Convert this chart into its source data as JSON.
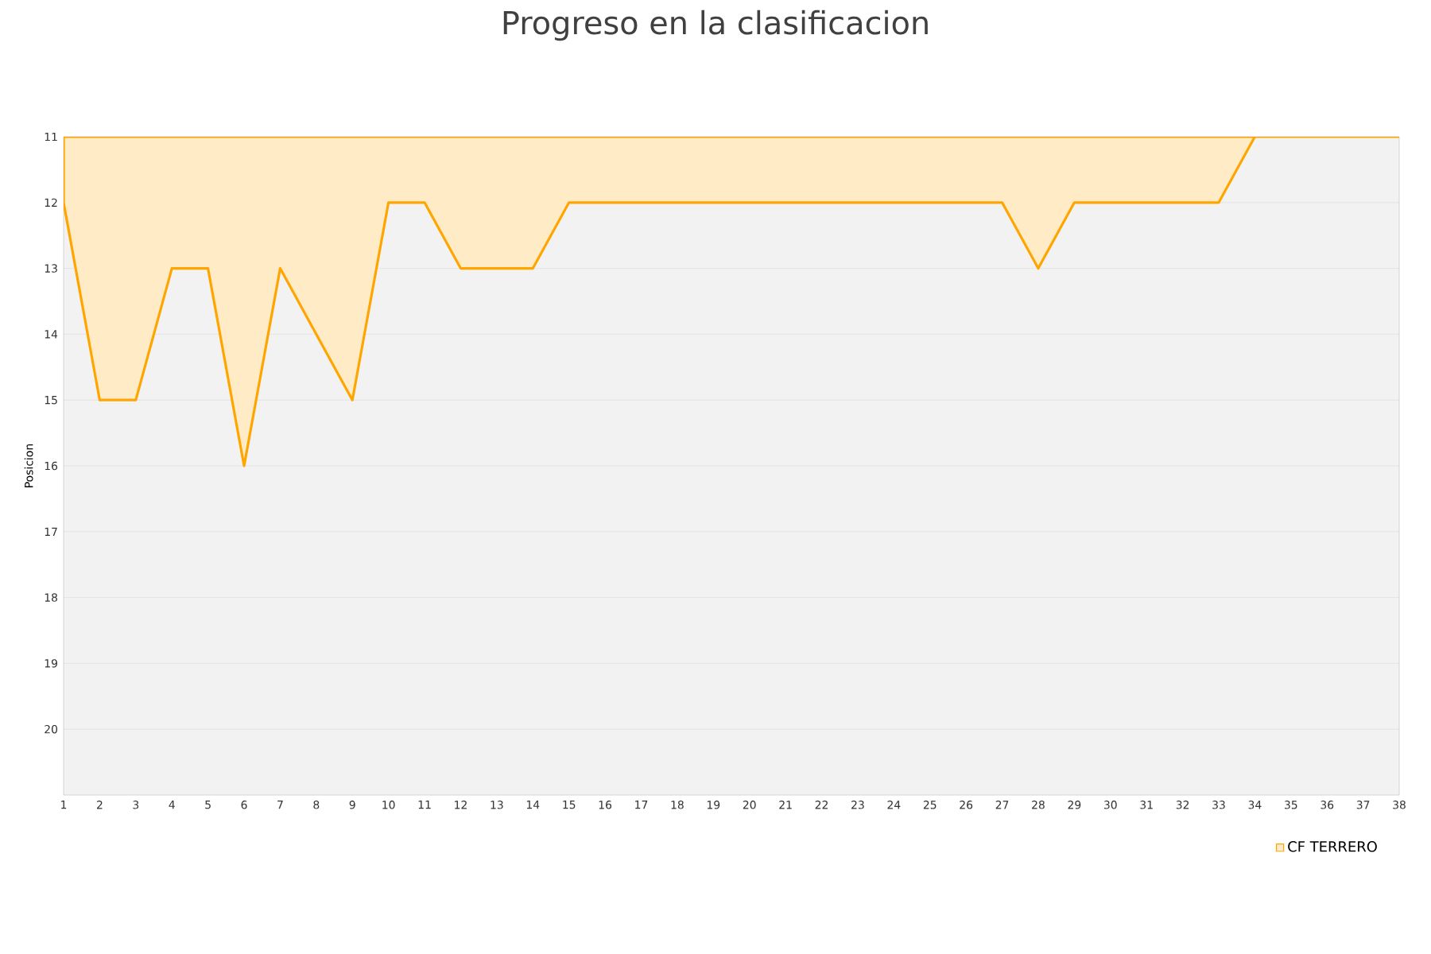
{
  "chart_data": {
    "type": "area",
    "title": "Progreso en la clasificacion",
    "ylabel": "Posicion",
    "x": [
      1,
      2,
      3,
      4,
      5,
      6,
      7,
      8,
      9,
      10,
      11,
      12,
      13,
      14,
      15,
      16,
      17,
      18,
      19,
      20,
      21,
      22,
      23,
      24,
      25,
      26,
      27,
      28,
      29,
      30,
      31,
      32,
      33,
      34,
      35,
      36,
      37,
      38
    ],
    "series": [
      {
        "name": "CF TERRERO",
        "color": "#ffa500",
        "values": [
          12,
          15,
          15,
          13,
          13,
          16,
          13,
          14,
          15,
          12,
          12,
          13,
          13,
          13,
          12,
          12,
          12,
          12,
          12,
          12,
          12,
          12,
          12,
          12,
          12,
          12,
          12,
          13,
          12,
          12,
          12,
          12,
          12,
          11,
          11,
          11,
          11,
          11
        ]
      }
    ],
    "xlim": [
      1,
      38
    ],
    "xticks": [
      1,
      2,
      3,
      4,
      5,
      6,
      7,
      8,
      9,
      10,
      11,
      12,
      13,
      14,
      15,
      16,
      17,
      18,
      19,
      20,
      21,
      22,
      23,
      24,
      25,
      26,
      27,
      28,
      29,
      30,
      31,
      32,
      33,
      34,
      35,
      36,
      37,
      38
    ],
    "ylim": [
      21,
      11
    ],
    "yticks": [
      11,
      12,
      13,
      14,
      15,
      16,
      17,
      18,
      19,
      20
    ],
    "grid": "y",
    "legend": "bottom right"
  }
}
